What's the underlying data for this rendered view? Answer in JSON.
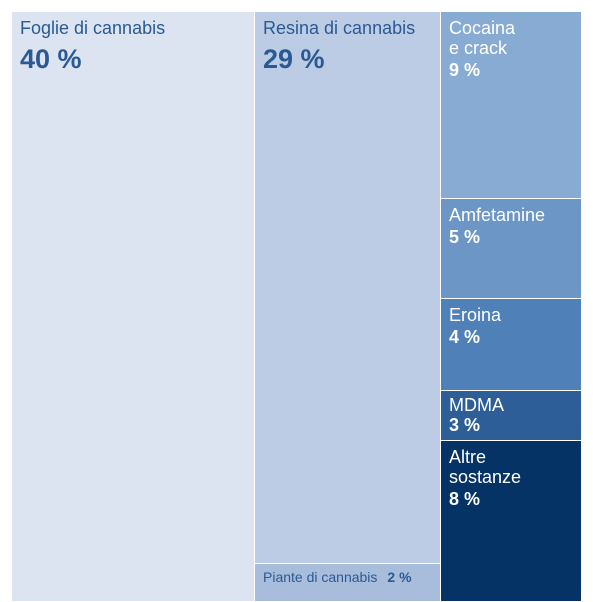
{
  "chart_data": {
    "type": "treemap",
    "unit": "%",
    "items": [
      {
        "id": "foglie",
        "label": "Foglie di cannabis",
        "value": 40,
        "display": "40 %",
        "color": "#dce3f1",
        "text": "#2a5a93"
      },
      {
        "id": "resina",
        "label": "Resina di cannabis",
        "value": 29,
        "display": "29 %",
        "color": "#bccce4",
        "text": "#2a5a93"
      },
      {
        "id": "piante",
        "label": "Piante di cannabis",
        "value": 2,
        "display": "2 %",
        "color": "#a8bddc",
        "text": "#2a5a93"
      },
      {
        "id": "cocaina",
        "label": "Cocaina\ne crack",
        "value": 9,
        "display": "9 %",
        "color": "#88abd3",
        "text": "#ffffff"
      },
      {
        "id": "amfetamine",
        "label": "Amfetamine",
        "value": 5,
        "display": "5 %",
        "color": "#6b96c5",
        "text": "#ffffff"
      },
      {
        "id": "eroina",
        "label": "Eroina",
        "value": 4,
        "display": "4 %",
        "color": "#4f80b8",
        "text": "#ffffff"
      },
      {
        "id": "mdma",
        "label": "MDMA",
        "value": 3,
        "display": "3 %",
        "color": "#2d5e98",
        "text": "#ffffff"
      },
      {
        "id": "altre",
        "label": "Altre\nsostanze",
        "value": 8,
        "display": "8 %",
        "color": "#063366",
        "text": "#ffffff"
      }
    ]
  }
}
